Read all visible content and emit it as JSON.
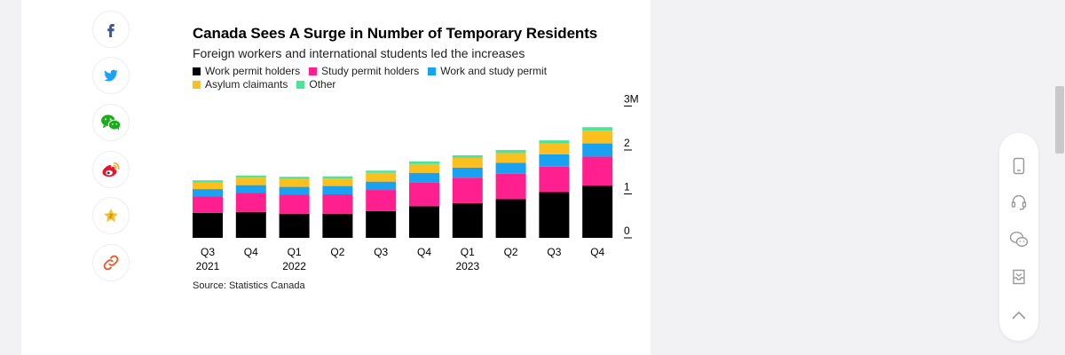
{
  "share": {
    "icons": [
      "facebook-icon",
      "twitter-icon",
      "wechat-icon",
      "weibo-icon",
      "favorite-star-icon",
      "copy-link-icon"
    ]
  },
  "figure": {
    "title": "Canada Sees A Surge in Number of Temporary Residents",
    "subtitle": "Foreign workers and international students led the increases",
    "source": "Source: Statistics Canada"
  },
  "chart_data": {
    "type": "bar",
    "stacked": true,
    "title": "Canada Sees A Surge in Number of Temporary Residents",
    "subtitle": "Foreign workers and international students led the increases",
    "categories": [
      "Q3 2021",
      "Q4",
      "Q1 2022",
      "Q2",
      "Q3",
      "Q4",
      "Q1 2023",
      "Q2",
      "Q3",
      "Q4"
    ],
    "tick_labels": [
      {
        "line1": "Q3",
        "line2": "2021"
      },
      {
        "line1": "Q4",
        "line2": ""
      },
      {
        "line1": "Q1",
        "line2": "2022"
      },
      {
        "line1": "Q2",
        "line2": ""
      },
      {
        "line1": "Q3",
        "line2": ""
      },
      {
        "line1": "Q4",
        "line2": ""
      },
      {
        "line1": "Q1",
        "line2": "2023"
      },
      {
        "line1": "Q2",
        "line2": ""
      },
      {
        "line1": "Q3",
        "line2": ""
      },
      {
        "line1": "Q4",
        "line2": ""
      }
    ],
    "series": [
      {
        "name": "Work permit holders",
        "color": "#000000",
        "values": [
          0.57,
          0.59,
          0.55,
          0.55,
          0.61,
          0.72,
          0.79,
          0.88,
          1.04,
          1.19
        ]
      },
      {
        "name": "Study permit holders",
        "color": "#ff1f8e",
        "values": [
          0.37,
          0.43,
          0.43,
          0.44,
          0.48,
          0.54,
          0.58,
          0.58,
          0.58,
          0.66
        ]
      },
      {
        "name": "Work and study permit",
        "color": "#1ba1f1",
        "values": [
          0.17,
          0.18,
          0.18,
          0.19,
          0.19,
          0.22,
          0.23,
          0.25,
          0.28,
          0.3
        ]
      },
      {
        "name": "Asylum claimants",
        "color": "#fcc01e",
        "values": [
          0.15,
          0.17,
          0.18,
          0.17,
          0.2,
          0.2,
          0.22,
          0.22,
          0.25,
          0.29
        ]
      },
      {
        "name": "Other",
        "color": "#4fe39a",
        "values": [
          0.05,
          0.05,
          0.05,
          0.05,
          0.05,
          0.06,
          0.06,
          0.07,
          0.07,
          0.08
        ]
      }
    ],
    "ylim": [
      0,
      3
    ],
    "y_ticks": [
      {
        "value": 0,
        "label": "0"
      },
      {
        "value": 1,
        "label": "1"
      },
      {
        "value": 2,
        "label": "2"
      },
      {
        "value": 3,
        "label": "3M"
      }
    ],
    "y_axis_side": "right",
    "legend_position": "top-left",
    "grid": false,
    "xlabel": "",
    "ylabel": ""
  },
  "float_panel": {
    "icons": [
      "tablet-icon",
      "headset-icon",
      "wechat-icon",
      "inbox-icon",
      "chevron-up-icon"
    ]
  }
}
